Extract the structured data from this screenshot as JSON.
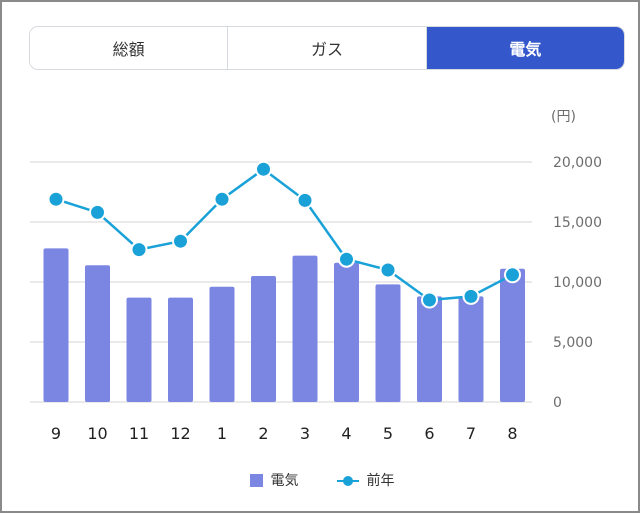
{
  "tabs": [
    {
      "label": "総額",
      "active": false
    },
    {
      "label": "ガス",
      "active": false
    },
    {
      "label": "電気",
      "active": true
    }
  ],
  "colors": {
    "active_tab": "#3557cc",
    "bar": "#7b86e2",
    "line": "#1aa2d8",
    "grid": "#d4d4d4",
    "axis_text": "#6d6d6d"
  },
  "chart_data": {
    "type": "bar",
    "unit_label": "(円)",
    "categories": [
      "9",
      "10",
      "11",
      "12",
      "1",
      "2",
      "3",
      "4",
      "5",
      "6",
      "7",
      "8"
    ],
    "series": [
      {
        "name": "電気",
        "type": "bar",
        "values": [
          12800,
          11400,
          8700,
          8700,
          9600,
          10500,
          12200,
          11600,
          9800,
          8800,
          8800,
          11100
        ]
      },
      {
        "name": "前年",
        "type": "line",
        "values": [
          16900,
          15800,
          12700,
          13400,
          16900,
          19400,
          16800,
          11900,
          11000,
          8500,
          8800,
          10600
        ]
      }
    ],
    "y_ticks": [
      "0",
      "5,000",
      "10,000",
      "15,000",
      "20,000"
    ],
    "ylim": [
      0,
      20000
    ],
    "legend": [
      "電気",
      "前年"
    ]
  }
}
